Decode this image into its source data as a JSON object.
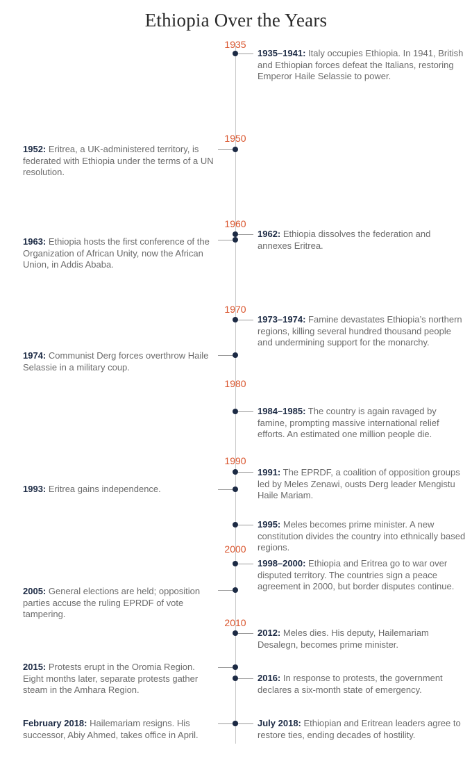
{
  "title": "Ethiopia Over the Years",
  "colors": {
    "title": "#2b2b2b",
    "year": "#d9532b",
    "dot": "#1c2a44",
    "date": "#1c2a44",
    "text": "#6b6b6b",
    "axis": "#c9c9c9"
  },
  "years": [
    "1935",
    "1950",
    "1960",
    "1970",
    "1980",
    "1990",
    "2000",
    "2010"
  ],
  "events": [
    {
      "date": "1935–1941:",
      "text": "Italy occupies Ethiopia. In 1941, British and Ethiopian forces defeat the Italians, restoring Emperor Haile Selassie to power.",
      "side": "right"
    },
    {
      "date": "1952:",
      "text": "Eritrea, a UK-administered territory, is federated with Ethiopia under the terms of a UN resolution.",
      "side": "left"
    },
    {
      "date": "1962:",
      "text": "Ethiopia dissolves the federation and annexes Eritrea.",
      "side": "right"
    },
    {
      "date": "1963:",
      "text": "Ethiopia hosts the first conference of the Organization of African Unity, now the African Union, in Addis Ababa.",
      "side": "left"
    },
    {
      "date": "1973–1974:",
      "text": "Famine devastates Ethiopia’s northern regions, killing several hundred thousand people and undermining support for the monarchy.",
      "side": "right"
    },
    {
      "date": "1974:",
      "text": "Communist Derg forces overthrow Haile Selassie in a military coup.",
      "side": "left"
    },
    {
      "date": "1984–1985:",
      "text": "The country is again ravaged by famine, prompting massive international relief efforts. An estimated one million people die.",
      "side": "right"
    },
    {
      "date": "1991:",
      "text": "The EPRDF, a coalition of opposition groups led by Meles Zenawi, ousts Derg leader Mengistu Haile Mariam.",
      "side": "right"
    },
    {
      "date": "1993:",
      "text": "Eritrea gains independence.",
      "side": "left"
    },
    {
      "date": "1995:",
      "text": "Meles becomes prime minister. A new constitution divides the country into ethnically based regions.",
      "side": "right"
    },
    {
      "date": "1998–2000:",
      "text": "Ethiopia and Eritrea go to war over disputed territory. The countries sign a peace agreement in 2000, but border disputes continue.",
      "side": "right"
    },
    {
      "date": "2005:",
      "text": "General elections are held; opposition parties accuse the ruling EPRDF of vote tampering.",
      "side": "left"
    },
    {
      "date": "2012:",
      "text": "Meles dies. His deputy, Hailemariam Desalegn, becomes prime minister.",
      "side": "right"
    },
    {
      "date": "2015:",
      "text": "Protests erupt in the Oromia Region. Eight months later, separate protests gather steam in the Amhara Region.",
      "side": "left"
    },
    {
      "date": "2016:",
      "text": "In response to protests, the government declares a six-month state of emergency.",
      "side": "right"
    },
    {
      "date": "February 2018:",
      "text": "Hailemariam resigns. His successor, Abiy Ahmed, takes office in April.",
      "side": "left"
    },
    {
      "date": "July 2018:",
      "text": "Ethiopian and Eritrean leaders agree to restore ties, ending decades of hostility.",
      "side": "right"
    }
  ]
}
